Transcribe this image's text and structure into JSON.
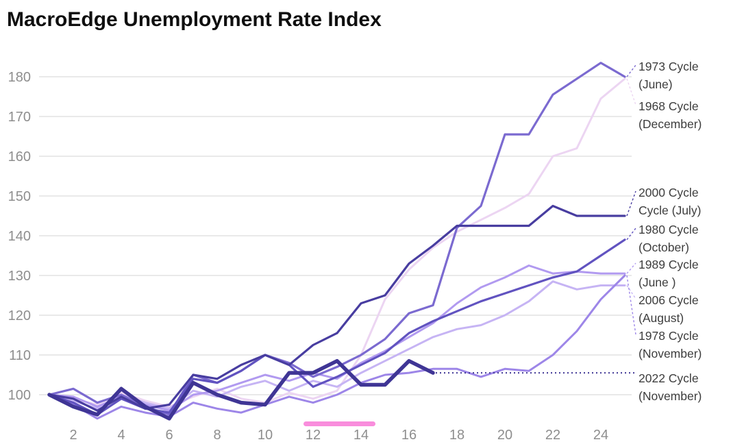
{
  "title": "MacroEdge Unemployment Rate Index",
  "colors": {
    "grid": "#e2e2e2",
    "tick_text": "#8e8e8e",
    "label_text": "#3d3d3d",
    "highlight_bar": "#f98ddc",
    "projection_dotted": "#3f3595"
  },
  "chart_data": {
    "type": "line",
    "title": "MacroEdge Unemployment Rate Index",
    "xlabel": "",
    "ylabel": "",
    "x_ticks": [
      2,
      4,
      6,
      8,
      10,
      12,
      14,
      16,
      18,
      20,
      22,
      24
    ],
    "y_ticks": [
      100,
      110,
      120,
      130,
      140,
      150,
      160,
      170,
      180
    ],
    "xlim": [
      1,
      25
    ],
    "ylim": [
      92,
      186
    ],
    "grid": "horizontal",
    "legend_position": "right-edge-labels",
    "x": [
      1,
      2,
      3,
      4,
      5,
      6,
      7,
      8,
      9,
      10,
      11,
      12,
      13,
      14,
      15,
      16,
      17,
      18,
      19,
      20,
      21,
      22,
      23,
      24,
      25
    ],
    "series": [
      {
        "name": "1968 Cycle (December)",
        "color": "#ecd5f2",
        "width": 3,
        "values": [
          100,
          99,
          97.5,
          100.5,
          98.5,
          97,
          99.5,
          101.5,
          99,
          98,
          100.5,
          99,
          101,
          110,
          124,
          131.5,
          137,
          141,
          144,
          147,
          150.5,
          160,
          162,
          174.5,
          179.5
        ]
      },
      {
        "name": "2006 Cycle (August)",
        "color": "#c6b4f4",
        "width": 3,
        "values": [
          100,
          98.5,
          96.5,
          100,
          98,
          96.5,
          101,
          99.5,
          102,
          103.5,
          101,
          103.5,
          102,
          105.5,
          108.5,
          111.5,
          114.5,
          116.5,
          117.5,
          120,
          123.5,
          128.5,
          126.5,
          127.5,
          127.5
        ]
      },
      {
        "name": "1989 Cycle (June )",
        "color": "#b19af0",
        "width": 3,
        "values": [
          100,
          99.5,
          97,
          99.5,
          97.5,
          96,
          100,
          101,
          103,
          105,
          103.5,
          105.5,
          104,
          108,
          111,
          114.5,
          118,
          123,
          127,
          129.5,
          132.5,
          130.5,
          131,
          130.5,
          130.5
        ]
      },
      {
        "name": "1978 Cycle (November)",
        "color": "#9d86e8",
        "width": 3,
        "values": [
          100,
          97.5,
          94,
          97,
          95.5,
          94.5,
          98,
          96.5,
          95.5,
          97.5,
          99.5,
          98,
          100,
          103,
          105,
          105.5,
          106.5,
          106.5,
          104.5,
          106.5,
          106,
          110,
          116,
          124,
          130
        ]
      },
      {
        "name": "1973 Cycle (June)",
        "color": "#7b6ad0",
        "width": 3.2,
        "values": [
          100,
          101.5,
          98,
          100,
          97,
          95,
          105,
          103,
          106,
          110,
          108,
          104.5,
          107,
          110,
          114,
          120.5,
          122.5,
          142,
          147.5,
          165.5,
          165.5,
          175.5,
          179.5,
          183.5,
          180
        ]
      },
      {
        "name": "1980 Cycle (October)",
        "color": "#6153c0",
        "width": 3.2,
        "values": [
          100,
          98,
          95,
          99,
          96.5,
          95.5,
          104,
          103,
          106,
          110,
          107.5,
          102,
          104.5,
          107.5,
          110.5,
          115.5,
          118.5,
          121,
          123.5,
          125.5,
          127.5,
          129.5,
          131,
          135,
          139
        ]
      },
      {
        "name": "2000 Cycle Cycle (July)",
        "color": "#483da0",
        "width": 3.2,
        "values": [
          100,
          99,
          96,
          99.5,
          96.5,
          97.5,
          105,
          104,
          107.5,
          110,
          107.5,
          112.5,
          115.5,
          123,
          125,
          133,
          137.5,
          142.5,
          142.5,
          142.5,
          142.5,
          147.5,
          145,
          145,
          145
        ]
      },
      {
        "name": "2022 Cycle (November)",
        "color": "#3f3595",
        "width": 5.5,
        "values": [
          100,
          97,
          95,
          101.5,
          97,
          94,
          103,
          100,
          98,
          97.5,
          105.5,
          105.5,
          108.5,
          102.5,
          102.5,
          108.5,
          105.5
        ]
      }
    ],
    "projection": {
      "series": "2022 Cycle (November)",
      "value": 105.5,
      "from_x": 17,
      "style": "dotted"
    },
    "highlight_bar": {
      "x_start": 11.6,
      "x_end": 14.6,
      "color": "#f98ddc"
    },
    "annotations": [
      {
        "line1": "1973 Cycle",
        "line2": "(June)",
        "series": "1973 Cycle (June)"
      },
      {
        "line1": "1968 Cycle",
        "line2": "(December)",
        "series": "1968 Cycle (December)"
      },
      {
        "line1": "2000 Cycle",
        "line2": "Cycle (July)",
        "series": "2000 Cycle Cycle (July)"
      },
      {
        "line1": "1980 Cycle",
        "line2": "(October)",
        "series": "1980 Cycle (October)"
      },
      {
        "line1": "1989 Cycle",
        "line2": "(June )",
        "series": "1989 Cycle (June )"
      },
      {
        "line1": "2006 Cycle",
        "line2": "(August)",
        "series": "2006 Cycle (August)"
      },
      {
        "line1": "1978 Cycle",
        "line2": "(November)",
        "series": "1978 Cycle (November)"
      },
      {
        "line1": "2022 Cycle",
        "line2": "(November)",
        "series": "2022 Cycle (November)"
      }
    ]
  }
}
